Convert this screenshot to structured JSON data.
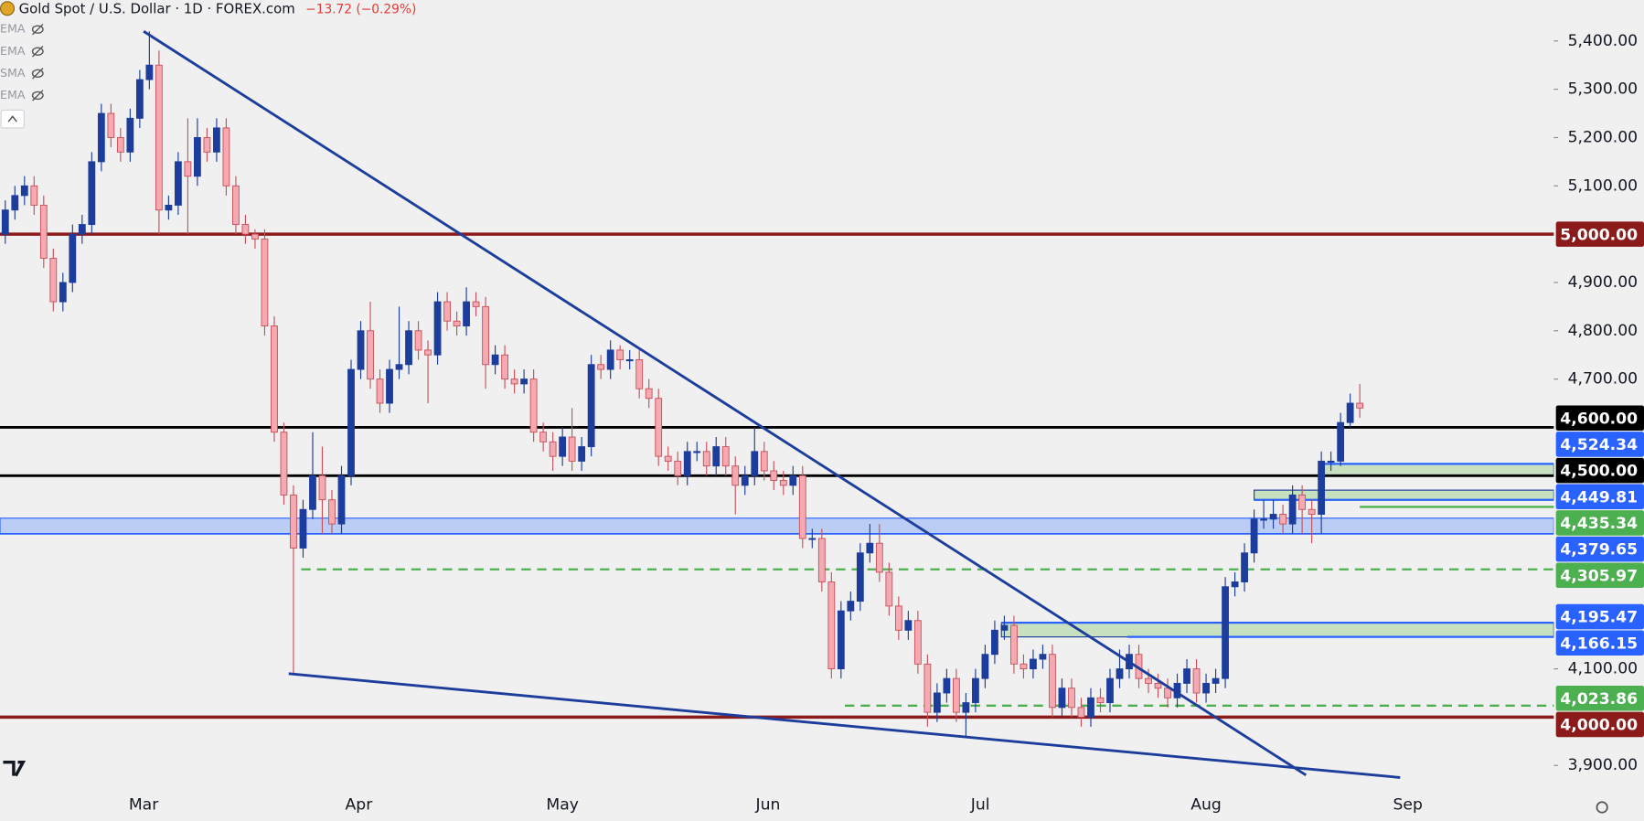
{
  "chart_data": {
    "type": "candlestick",
    "title": "Gold Spot / U.S. Dollar · 1D · FOREX.com",
    "change": "−13.72 (−0.29%)",
    "indicators": [
      "EMA",
      "EMA",
      "SMA",
      "EMA"
    ],
    "up_color": "#1c3d9c",
    "down_color": "#f5aab2",
    "down_edge": "#c8505c",
    "open": [
      5000,
      5050,
      5080,
      5100,
      5060,
      4950,
      4860,
      4900,
      5000,
      5020,
      5150,
      5250,
      5200,
      5170,
      5240,
      5320,
      5350,
      5050,
      5060,
      5150,
      5120,
      5200,
      5170,
      5220,
      5100,
      5020,
      5000,
      4990,
      4810,
      4590,
      4460,
      4350,
      4430,
      4500,
      4450,
      4400,
      4500,
      4720,
      4800,
      4700,
      4650,
      4720,
      4730,
      4800,
      4760,
      4750,
      4860,
      4820,
      4810,
      4860,
      4850,
      4730,
      4750,
      4700,
      4690,
      4700,
      4590,
      4570,
      4540,
      4580,
      4530,
      4560,
      4730,
      4720,
      4760,
      4740,
      4740,
      4680,
      4660,
      4540,
      4530,
      4500,
      4550,
      4550,
      4520,
      4560,
      4520,
      4480,
      4500,
      4550,
      4510,
      4490,
      4480,
      4500,
      4370,
      4370,
      4280,
      4100,
      4220,
      4240,
      4340,
      4360,
      4300,
      4230,
      4180,
      4200,
      4110,
      4010,
      4050,
      4080,
      4010,
      4030,
      4080,
      4130,
      4180,
      4190,
      4110,
      4100,
      4120,
      4130,
      4020,
      4060,
      4020,
      4000,
      4040,
      4030,
      4080,
      4100,
      4130,
      4080,
      4070,
      4060,
      4040,
      4070,
      4100,
      4050,
      4070,
      4080,
      4270,
      4280,
      4340,
      4410,
      4410,
      4420,
      4400,
      4460,
      4430,
      4420,
      4530,
      4530,
      4610,
      4650
    ],
    "high": [
      5070,
      5100,
      5120,
      5120,
      5080,
      4970,
      4920,
      5020,
      5040,
      5170,
      5270,
      5270,
      5220,
      5260,
      5340,
      5420,
      5380,
      5080,
      5170,
      5240,
      5240,
      5220,
      5240,
      5240,
      5120,
      5040,
      5010,
      5010,
      4830,
      4610,
      4480,
      4450,
      4590,
      4560,
      4470,
      4520,
      4740,
      4820,
      4860,
      4720,
      4740,
      4850,
      4820,
      4820,
      4780,
      4880,
      4880,
      4840,
      4890,
      4880,
      4870,
      4770,
      4770,
      4720,
      4720,
      4720,
      4610,
      4590,
      4600,
      4640,
      4580,
      4750,
      4750,
      4780,
      4770,
      4760,
      4760,
      4700,
      4680,
      4560,
      4550,
      4570,
      4570,
      4570,
      4580,
      4580,
      4540,
      4520,
      4600,
      4570,
      4530,
      4510,
      4520,
      4520,
      4390,
      4390,
      4300,
      4240,
      4260,
      4360,
      4400,
      4400,
      4320,
      4250,
      4220,
      4220,
      4130,
      4070,
      4100,
      4100,
      4050,
      4100,
      4150,
      4200,
      4210,
      4210,
      4130,
      4140,
      4150,
      4150,
      4080,
      4080,
      4040,
      4060,
      4060,
      4100,
      4140,
      4150,
      4150,
      4100,
      4090,
      4080,
      4090,
      4120,
      4120,
      4090,
      4100,
      4290,
      4300,
      4360,
      4430,
      4450,
      4450,
      4440,
      4480,
      4480,
      4450,
      4550,
      4550,
      4630,
      4670,
      4690
    ],
    "low": [
      4980,
      5030,
      5060,
      5040,
      4930,
      4840,
      4840,
      4880,
      4980,
      5000,
      5130,
      5180,
      5150,
      5150,
      5220,
      5300,
      5000,
      5030,
      5040,
      5000,
      5100,
      5150,
      5150,
      5080,
      5000,
      4980,
      4970,
      4790,
      4570,
      4440,
      4090,
      4330,
      4410,
      4380,
      4380,
      4380,
      4480,
      4700,
      4680,
      4630,
      4630,
      4700,
      4710,
      4740,
      4650,
      4730,
      4800,
      4790,
      4790,
      4830,
      4680,
      4710,
      4680,
      4670,
      4670,
      4570,
      4550,
      4510,
      4520,
      4510,
      4510,
      4540,
      4700,
      4700,
      4720,
      4720,
      4660,
      4640,
      4520,
      4510,
      4480,
      4480,
      4530,
      4500,
      4500,
      4500,
      4420,
      4460,
      4480,
      4490,
      4470,
      4460,
      4460,
      4350,
      4350,
      4260,
      4080,
      4080,
      4200,
      4220,
      4320,
      4280,
      4210,
      4160,
      4160,
      4090,
      3980,
      3990,
      4030,
      3990,
      3960,
      4010,
      4060,
      4110,
      4160,
      4090,
      4080,
      4080,
      4100,
      4000,
      4000,
      4000,
      3980,
      3980,
      4010,
      4010,
      4060,
      4080,
      4060,
      4050,
      4040,
      4020,
      4020,
      4050,
      4030,
      4030,
      4050,
      4060,
      4250,
      4260,
      4320,
      4390,
      4390,
      4380,
      4380,
      4380,
      4360,
      4380,
      4510,
      4520,
      4600,
      4620
    ],
    "close": [
      5050,
      5080,
      5100,
      5060,
      4950,
      4860,
      4900,
      5000,
      5020,
      5150,
      5250,
      5200,
      5170,
      5240,
      5320,
      5350,
      5050,
      5060,
      5150,
      5120,
      5200,
      5170,
      5220,
      5100,
      5020,
      5000,
      4990,
      4810,
      4590,
      4460,
      4350,
      4430,
      4500,
      4450,
      4400,
      4500,
      4720,
      4800,
      4700,
      4650,
      4720,
      4730,
      4800,
      4760,
      4750,
      4860,
      4820,
      4810,
      4860,
      4850,
      4730,
      4750,
      4700,
      4690,
      4700,
      4590,
      4570,
      4540,
      4580,
      4530,
      4560,
      4730,
      4720,
      4760,
      4740,
      4740,
      4680,
      4660,
      4540,
      4530,
      4500,
      4550,
      4550,
      4520,
      4560,
      4520,
      4480,
      4500,
      4550,
      4510,
      4490,
      4480,
      4500,
      4370,
      4370,
      4280,
      4100,
      4220,
      4240,
      4340,
      4360,
      4300,
      4230,
      4180,
      4200,
      4110,
      4010,
      4050,
      4080,
      4010,
      4030,
      4080,
      4130,
      4180,
      4190,
      4110,
      4100,
      4120,
      4130,
      4020,
      4060,
      4020,
      4000,
      4040,
      4030,
      4080,
      4100,
      4130,
      4080,
      4070,
      4060,
      4040,
      4070,
      4100,
      4050,
      4070,
      4080,
      4270,
      4280,
      4340,
      4410,
      4410,
      4420,
      4400,
      4460,
      4430,
      4420,
      4530,
      4530,
      4610,
      4650,
      4640
    ],
    "xlim": [
      -0.55,
      161.2
    ],
    "ylim": [
      3852.4,
      5484.7
    ],
    "xticks": [
      {
        "value": 14.4,
        "label": "Mar"
      },
      {
        "value": 36.8,
        "label": "Apr"
      },
      {
        "value": 58,
        "label": "May"
      },
      {
        "value": 79.4,
        "label": "Jun"
      },
      {
        "value": 101.5,
        "label": "Jul"
      },
      {
        "value": 125,
        "label": "Aug"
      },
      {
        "value": 146,
        "label": "Sep"
      }
    ],
    "yticks": [
      {
        "value": 5400,
        "label": "5,400.00"
      },
      {
        "value": 5300,
        "label": "5,300.00"
      },
      {
        "value": 5200,
        "label": "5,200.00"
      },
      {
        "value": 5100,
        "label": "5,100.00"
      },
      {
        "value": 4900,
        "label": "4,900.00"
      },
      {
        "value": 4800,
        "label": "4,800.00"
      },
      {
        "value": 4700,
        "label": "4,700.00"
      },
      {
        "value": 4100,
        "label": "4,100.00"
      },
      {
        "value": 3900,
        "label": "3,900.00"
      }
    ],
    "zones": [
      {
        "from": -0.55,
        "low": 4379.65,
        "high": 4412,
        "color": "#a9c1f5",
        "edge": "#2962ff"
      },
      {
        "from": 103.7,
        "low": 4166.15,
        "high": 4195.47,
        "color": "#b9dcb0",
        "edge": "#1c3d9c"
      },
      {
        "from": 130,
        "low": 4449.81,
        "high": 4470,
        "color": "#b9dcb0",
        "edge": "#1c3d9c"
      },
      {
        "from": 137,
        "low": 4500,
        "high": 4524.34,
        "color": "#b9dcb0",
        "edge": "#1c3d9c"
      }
    ],
    "levels": [
      {
        "value": 5000,
        "label": "5,000.00",
        "color": "#8b1a1a",
        "text_color": "#ffffff",
        "style": "solid",
        "width": 3,
        "from": -0.55
      },
      {
        "value": 4600,
        "label": "4,600.00",
        "color": "#000000",
        "text_color": "#ffffff",
        "style": "solid",
        "width": 2.5,
        "from": -0.55
      },
      {
        "value": 4524.34,
        "label": "4,524.34",
        "color": "#2962ff",
        "text_color": "#ffffff",
        "style": "solid",
        "width": 2,
        "from": 137
      },
      {
        "value": 4500,
        "label": "4,500.00",
        "color": "#000000",
        "text_color": "#ffffff",
        "style": "solid",
        "width": 2.5,
        "from": -0.55
      },
      {
        "value": 4449.81,
        "label": "4,449.81",
        "color": "#2962ff",
        "text_color": "#ffffff",
        "style": "solid",
        "width": 2,
        "from": 130
      },
      {
        "value": 4435.34,
        "label": "4,435.34",
        "color": "#4caf50",
        "text_color": "#ffffff",
        "style": "solid",
        "width": 2,
        "from": 141
      },
      {
        "value": 4379.65,
        "label": "4,379.65",
        "color": "#2962ff",
        "text_color": "#ffffff",
        "style": "solid",
        "width": 1.5,
        "from": -0.55
      },
      {
        "value": 4305.97,
        "label": "4,305.97",
        "color": "#4caf50",
        "text_color": "#ffffff",
        "style": "dashed",
        "width": 2,
        "from": 30.8
      },
      {
        "value": 4195.47,
        "label": "4,195.47",
        "color": "#2962ff",
        "text_color": "#ffffff",
        "style": "solid",
        "width": 2,
        "from": 103.7
      },
      {
        "value": 4166.15,
        "label": "4,166.15",
        "color": "#2962ff",
        "text_color": "#ffffff",
        "style": "solid",
        "width": 2,
        "from": 116.8
      },
      {
        "value": 4023.86,
        "label": "4,023.86",
        "color": "#4caf50",
        "text_color": "#ffffff",
        "style": "dashed",
        "width": 2,
        "from": 87.4
      },
      {
        "value": 4000,
        "label": "4,000.00",
        "color": "#8b1a1a",
        "text_color": "#ffffff",
        "style": "solid",
        "width": 3,
        "from": -0.55
      }
    ],
    "trendlines": [
      {
        "x": [
          14.4,
          135.4
        ],
        "y": [
          5420,
          3880
        ],
        "color": "#1c3d9c"
      },
      {
        "x": [
          29.5,
          145.2
        ],
        "y": [
          4090,
          3875
        ],
        "color": "#1c3d9c"
      }
    ]
  }
}
